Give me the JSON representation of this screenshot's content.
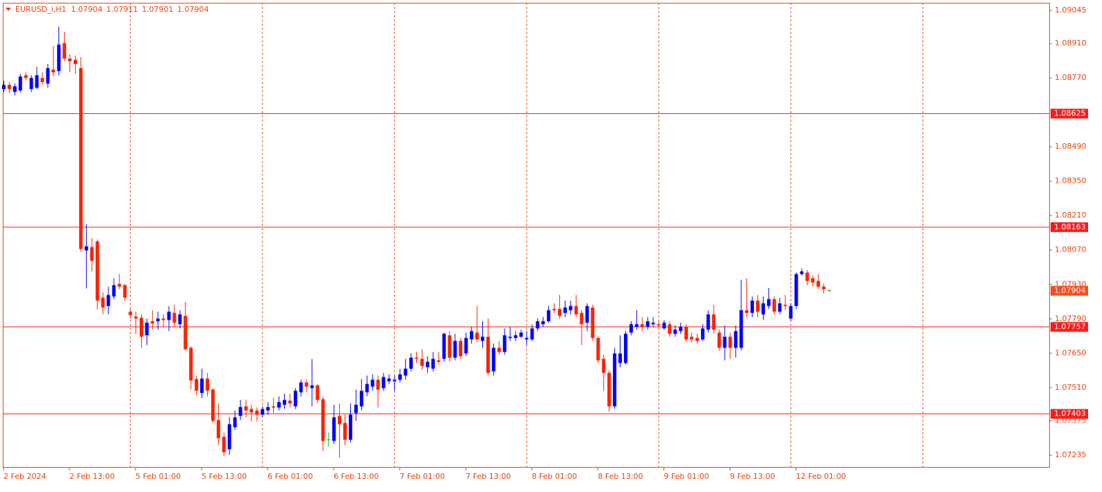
{
  "chart_data": {
    "type": "candlestick",
    "symbol": "EURUSD_i,H1",
    "categories": [
      "2 Feb 2024",
      null,
      null,
      null,
      null,
      null,
      null,
      null,
      null,
      null,
      null,
      null,
      "2 Feb 13:00",
      null,
      null,
      null,
      null,
      null,
      null,
      null,
      null,
      null,
      null,
      null,
      "5 Feb 01:00",
      null,
      null,
      null,
      null,
      null,
      null,
      null,
      null,
      null,
      null,
      null,
      "5 Feb 13:00",
      null,
      null,
      null,
      null,
      null,
      null,
      null,
      null,
      null,
      null,
      null,
      "6 Feb 01:00",
      null,
      null,
      null,
      null,
      null,
      null,
      null,
      null,
      null,
      null,
      null,
      "6 Feb 13:00",
      null,
      null,
      null,
      null,
      null,
      null,
      null,
      null,
      null,
      null,
      null,
      "7 Feb 01:00",
      null,
      null,
      null,
      null,
      null,
      null,
      null,
      null,
      null,
      null,
      null,
      "7 Feb 13:00",
      null,
      null,
      null,
      null,
      null,
      null,
      null,
      null,
      null,
      null,
      null,
      "8 Feb 01:00",
      null,
      null,
      null,
      null,
      null,
      null,
      null,
      null,
      null,
      null,
      null,
      "8 Feb 13:00",
      null,
      null,
      null,
      null,
      null,
      null,
      null,
      null,
      null,
      null,
      null,
      "9 Feb 01:00",
      null,
      null,
      null,
      null,
      null,
      null,
      null,
      null,
      null,
      null,
      null,
      "9 Feb 13:00",
      null,
      null,
      null,
      null,
      null,
      null,
      null,
      null,
      null,
      null,
      null,
      "12 Feb 01:00",
      null,
      null,
      null,
      null,
      null,
      null
    ],
    "open": [
      1.08725,
      1.08742,
      1.08713,
      1.08719,
      1.08781,
      1.08725,
      1.0873,
      1.0877,
      1.08747,
      1.08804,
      1.08798,
      1.08912,
      1.08849,
      1.08844,
      1.0881,
      1.08068,
      1.08082,
      1.08105,
      1.07876,
      1.07842,
      1.07881,
      1.07932,
      1.07927,
      1.07819,
      1.07799,
      1.07794,
      1.07723,
      1.0778,
      1.0778,
      1.07791,
      1.07785,
      1.07814,
      1.07768,
      1.07802,
      1.07672,
      1.07545,
      1.07488,
      1.07547,
      1.07502,
      1.07378,
      1.0731,
      1.07259,
      1.07349,
      1.07395,
      1.07434,
      1.07423,
      1.07417,
      1.074,
      1.07417,
      1.07434,
      1.07429,
      1.0744,
      1.07457,
      1.07434,
      1.07491,
      1.07531,
      1.07508,
      1.07519,
      1.07463,
      1.07298,
      1.07293,
      1.07395,
      1.07366,
      1.07298,
      1.07406,
      1.07434,
      1.07491,
      1.07514,
      1.07542,
      1.07508,
      1.07536,
      1.07536,
      1.07542,
      1.07559,
      1.07587,
      1.07632,
      1.07627,
      1.07593,
      1.07587,
      1.07621,
      1.07627,
      1.07723,
      1.07632,
      1.077,
      1.07649,
      1.07706,
      1.07734,
      1.077,
      1.07717,
      1.07576,
      1.07672,
      1.07655,
      1.07712,
      1.07712,
      1.07717,
      1.07706,
      1.07706,
      1.07751,
      1.07768,
      1.0778,
      1.0783,
      1.0783,
      1.07814,
      1.07825,
      1.07842,
      1.07814,
      1.07774,
      1.07836,
      1.07712,
      1.07627,
      1.0757,
      1.07434,
      1.0761,
      1.0761,
      1.07734,
      1.07757,
      1.07768,
      1.07757,
      1.07768,
      1.07768,
      1.07751,
      1.07768,
      1.07729,
      1.0774,
      1.07757,
      1.07717,
      1.07712,
      1.07706,
      1.07746,
      1.07808,
      1.07734,
      1.07672,
      1.07717,
      1.07672,
      1.07672,
      1.07825,
      1.07814,
      1.07864,
      1.07808,
      1.07842,
      1.0787,
      1.07819,
      1.07847,
      1.07791,
      1.07842,
      1.07972,
      1.07978,
      1.07955,
      1.07944,
      1.07921,
      1.07904
    ],
    "high": [
      1.08759,
      1.08753,
      1.08747,
      1.08787,
      1.08793,
      1.08781,
      1.08815,
      1.08793,
      1.08827,
      1.089,
      1.08979,
      1.08957,
      1.08866,
      1.08861,
      1.08855,
      1.08176,
      1.08119,
      1.08113,
      1.07898,
      1.07921,
      1.07955,
      1.07972,
      1.07932,
      1.0783,
      1.07819,
      1.07808,
      1.07791,
      1.07825,
      1.07819,
      1.07808,
      1.07842,
      1.07847,
      1.07825,
      1.07859,
      1.07678,
      1.07559,
      1.07587,
      1.0757,
      1.07508,
      1.07446,
      1.07327,
      1.07389,
      1.07417,
      1.0746,
      1.0746,
      1.0744,
      1.07429,
      1.07434,
      1.07451,
      1.07468,
      1.07474,
      1.07485,
      1.07485,
      1.07508,
      1.07542,
      1.07542,
      1.07627,
      1.07525,
      1.07474,
      1.07327,
      1.0744,
      1.07446,
      1.074,
      1.07446,
      1.07502,
      1.07545,
      1.07559,
      1.07564,
      1.07559,
      1.0757,
      1.07564,
      1.07559,
      1.07587,
      1.07627,
      1.07649,
      1.07655,
      1.07666,
      1.07638,
      1.07655,
      1.07655,
      1.07734,
      1.0774,
      1.07729,
      1.07712,
      1.07734,
      1.07757,
      1.07842,
      1.0778,
      1.07791,
      1.07689,
      1.077,
      1.07751,
      1.07757,
      1.0774,
      1.07746,
      1.0774,
      1.07768,
      1.07791,
      1.07797,
      1.07842,
      1.07853,
      1.07887,
      1.07864,
      1.07864,
      1.07887,
      1.07825,
      1.07853,
      1.07847,
      1.07717,
      1.07644,
      1.07581,
      1.07672,
      1.07723,
      1.0774,
      1.0778,
      1.07825,
      1.07797,
      1.07797,
      1.07797,
      1.0778,
      1.07785,
      1.0778,
      1.07763,
      1.07774,
      1.07768,
      1.07734,
      1.07729,
      1.07768,
      1.07825,
      1.07847,
      1.07746,
      1.07763,
      1.07734,
      1.07763,
      1.07949,
      1.07955,
      1.07881,
      1.07887,
      1.07881,
      1.07915,
      1.07881,
      1.07876,
      1.07887,
      1.07853,
      1.07978,
      1.07995,
      1.07989,
      1.07966,
      1.07972,
      1.07932,
      1.07911
    ],
    "low": [
      1.08713,
      1.08708,
      1.08699,
      1.08711,
      1.08759,
      1.08713,
      1.08725,
      1.08742,
      1.0873,
      1.08776,
      1.08781,
      1.08838,
      1.08793,
      1.08787,
      1.08063,
      1.07913,
      1.07983,
      1.07828,
      1.07808,
      1.07808,
      1.0787,
      1.0791,
      1.07864,
      1.07791,
      1.07729,
      1.07672,
      1.07683,
      1.07746,
      1.07746,
      1.07757,
      1.0774,
      1.07757,
      1.07751,
      1.07661,
      1.07502,
      1.0748,
      1.07468,
      1.07474,
      1.07366,
      1.07276,
      1.07231,
      1.07236,
      1.07338,
      1.07378,
      1.07389,
      1.07372,
      1.07372,
      1.07389,
      1.074,
      1.07406,
      1.07417,
      1.07423,
      1.07429,
      1.07423,
      1.07474,
      1.07491,
      1.07434,
      1.07446,
      1.07253,
      1.0727,
      1.07281,
      1.07225,
      1.07276,
      1.07287,
      1.07375,
      1.07417,
      1.07474,
      1.07497,
      1.07429,
      1.07497,
      1.07525,
      1.07497,
      1.07531,
      1.07542,
      1.07576,
      1.0761,
      1.07581,
      1.0757,
      1.07576,
      1.07604,
      1.07615,
      1.07615,
      1.07621,
      1.07627,
      1.07638,
      1.07689,
      1.07695,
      1.07672,
      1.07559,
      1.07559,
      1.07644,
      1.07644,
      1.077,
      1.077,
      1.07712,
      1.07683,
      1.077,
      1.0774,
      1.07757,
      1.07774,
      1.07814,
      1.07791,
      1.07797,
      1.07808,
      1.07797,
      1.07683,
      1.0774,
      1.077,
      1.0761,
      1.07497,
      1.07412,
      1.07423,
      1.07593,
      1.07604,
      1.07723,
      1.07746,
      1.0774,
      1.07746,
      1.07757,
      1.07751,
      1.07746,
      1.07717,
      1.07717,
      1.07729,
      1.07695,
      1.07695,
      1.07689,
      1.077,
      1.07734,
      1.07729,
      1.07661,
      1.07621,
      1.07627,
      1.07632,
      1.07661,
      1.07797,
      1.07797,
      1.07797,
      1.07785,
      1.0783,
      1.07808,
      1.07808,
      1.07825,
      1.0778,
      1.0783,
      1.07966,
      1.07927,
      1.07921,
      1.0791,
      1.07893,
      1.07901
    ],
    "close": [
      1.08742,
      1.08725,
      1.08736,
      1.08776,
      1.0877,
      1.0877,
      1.08781,
      1.08753,
      1.0881,
      1.08793,
      1.08906,
      1.08849,
      1.08838,
      1.08827,
      1.08074,
      1.08085,
      1.08026,
      1.07864,
      1.07836,
      1.07887,
      1.07927,
      1.07921,
      1.07876,
      1.07805,
      1.07791,
      1.07717,
      1.07774,
      1.07771,
      1.07791,
      1.07785,
      1.07819,
      1.07774,
      1.07808,
      1.07666,
      1.07539,
      1.07497,
      1.07547,
      1.07497,
      1.07375,
      1.07304,
      1.07247,
      1.07361,
      1.07389,
      1.07431,
      1.07417,
      1.07409,
      1.074,
      1.07423,
      1.07431,
      1.07429,
      1.07451,
      1.0746,
      1.07446,
      1.07497,
      1.07531,
      1.07514,
      1.07519,
      1.0746,
      1.07293,
      1.07298,
      1.07389,
      1.07361,
      1.07298,
      1.074,
      1.0744,
      1.07497,
      1.07525,
      1.07542,
      1.07502,
      1.07553,
      1.07547,
      1.07542,
      1.07564,
      1.07587,
      1.07632,
      1.07627,
      1.07598,
      1.07615,
      1.07627,
      1.07615,
      1.07729,
      1.07632,
      1.077,
      1.07638,
      1.07712,
      1.0774,
      1.07706,
      1.07717,
      1.0757,
      1.07672,
      1.07655,
      1.07723,
      1.07717,
      1.07723,
      1.07734,
      1.07712,
      1.07751,
      1.0778,
      1.0778,
      1.07825,
      1.07825,
      1.07802,
      1.07836,
      1.07842,
      1.07808,
      1.07768,
      1.07842,
      1.07712,
      1.07621,
      1.0757,
      1.07434,
      1.07649,
      1.07649,
      1.07729,
      1.07768,
      1.07768,
      1.07757,
      1.0778,
      1.07774,
      1.07763,
      1.07774,
      1.07729,
      1.07746,
      1.07757,
      1.07706,
      1.07706,
      1.077,
      1.07751,
      1.07808,
      1.07746,
      1.07672,
      1.07717,
      1.07672,
      1.0774,
      1.07825,
      1.07814,
      1.07864,
      1.07819,
      1.07853,
      1.0787,
      1.07819,
      1.07853,
      1.07842,
      1.07842,
      1.07972,
      1.07983,
      1.07944,
      1.07938,
      1.07921,
      1.0791,
      1.07904
    ],
    "up_color": "#0000ff",
    "down_color": "#ff2000",
    "doji_color": "#00c800",
    "levels": [
      1.08625,
      1.08163,
      1.07757,
      1.07403
    ],
    "level_color": "#ff1a1a",
    "ylim": [
      1.07187,
      1.09076
    ],
    "yticks": [
      1.09045,
      {
        "value": 1.0891,
        "label": "1.08910"
      },
      {
        "value": 1.0877,
        "label": "1.08770"
      },
      {
        "value": 1.0849,
        "label": "1.08490"
      },
      {
        "value": 1.0835,
        "label": "1.08350"
      },
      {
        "value": 1.0821,
        "label": "1.08210"
      },
      {
        "value": 1.0807,
        "label": "1.08070"
      },
      {
        "value": 1.0793,
        "label": "1.07930"
      },
      {
        "value": 1.0779,
        "label": "1.07790"
      },
      {
        "value": 1.0765,
        "label": "1.07650"
      },
      {
        "value": 1.0751,
        "label": "1.07510"
      },
      1.07375,
      1.07235
    ]
  }
}
